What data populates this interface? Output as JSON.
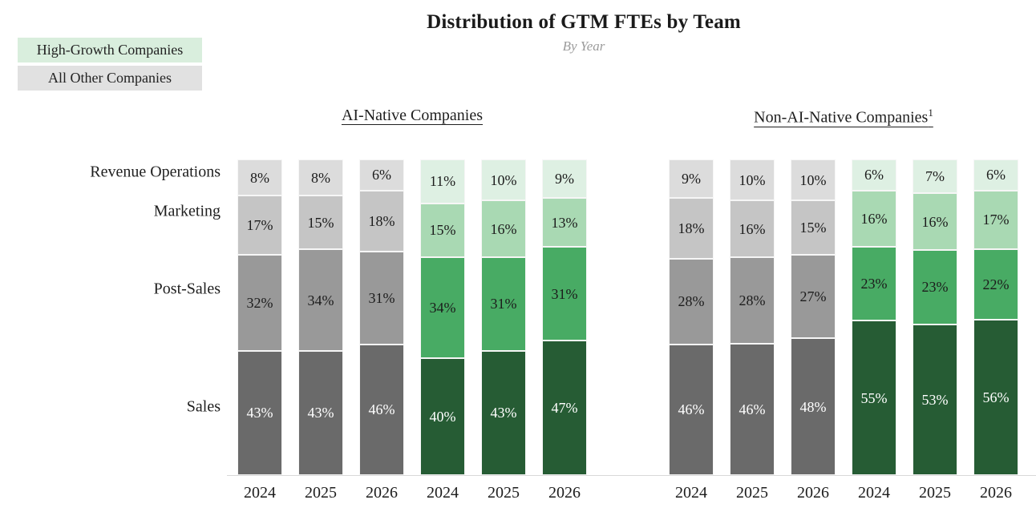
{
  "chart_data": {
    "type": "bar",
    "stacked": true,
    "percent_stacked": true,
    "title": "Distribution of GTM FTEs by Team",
    "subtitle": "By Year",
    "value_suffix": "%",
    "ylim": [
      0,
      100
    ],
    "grid": false,
    "legend_position": "top-left",
    "legend": [
      {
        "label": "High-Growth Companies",
        "color": "#d9eedd",
        "palette": "green"
      },
      {
        "label": "All Other Companies",
        "color": "#e1e1e1",
        "palette": "gray"
      }
    ],
    "categories": [
      "Revenue Operations",
      "Marketing",
      "Post-Sales",
      "Sales"
    ],
    "palettes": {
      "gray": {
        "fills": [
          "#dcdcdc",
          "#c5c5c5",
          "#999999",
          "#6a6a6a"
        ],
        "text": [
          "#1c1c1c",
          "#1c1c1c",
          "#1c1c1c",
          "#ffffff"
        ]
      },
      "green": {
        "fills": [
          "#def0e3",
          "#a9d9b3",
          "#48ab64",
          "#265c34"
        ],
        "text": [
          "#1c1c1c",
          "#1c1c1c",
          "#1c1c1c",
          "#ffffff"
        ]
      }
    },
    "groups": [
      {
        "name": "AI-Native Companies",
        "sup": "",
        "bars": [
          {
            "year": "2024",
            "series": "All Other Companies",
            "palette": "gray",
            "values": [
              8,
              17,
              32,
              43
            ]
          },
          {
            "year": "2025",
            "series": "All Other Companies",
            "palette": "gray",
            "values": [
              8,
              15,
              34,
              43
            ]
          },
          {
            "year": "2026",
            "series": "All Other Companies",
            "palette": "gray",
            "values": [
              6,
              18,
              31,
              46
            ]
          },
          {
            "year": "2024",
            "series": "High-Growth Companies",
            "palette": "green",
            "values": [
              11,
              15,
              34,
              40
            ]
          },
          {
            "year": "2025",
            "series": "High-Growth Companies",
            "palette": "green",
            "values": [
              10,
              16,
              31,
              43
            ]
          },
          {
            "year": "2026",
            "series": "High-Growth Companies",
            "palette": "green",
            "values": [
              9,
              13,
              31,
              47
            ]
          }
        ]
      },
      {
        "name": "Non-AI-Native Companies",
        "sup": "1",
        "bars": [
          {
            "year": "2024",
            "series": "All Other Companies",
            "palette": "gray",
            "values": [
              9,
              18,
              28,
              46
            ]
          },
          {
            "year": "2025",
            "series": "All Other Companies",
            "palette": "gray",
            "values": [
              10,
              16,
              28,
              46
            ]
          },
          {
            "year": "2026",
            "series": "All Other Companies",
            "palette": "gray",
            "values": [
              10,
              15,
              27,
              48
            ]
          },
          {
            "year": "2024",
            "series": "High-Growth Companies",
            "palette": "green",
            "values": [
              6,
              16,
              23,
              55
            ]
          },
          {
            "year": "2025",
            "series": "High-Growth Companies",
            "palette": "green",
            "values": [
              7,
              16,
              23,
              53
            ]
          },
          {
            "year": "2026",
            "series": "High-Growth Companies",
            "palette": "green",
            "values": [
              6,
              17,
              22,
              56
            ]
          }
        ]
      }
    ]
  }
}
